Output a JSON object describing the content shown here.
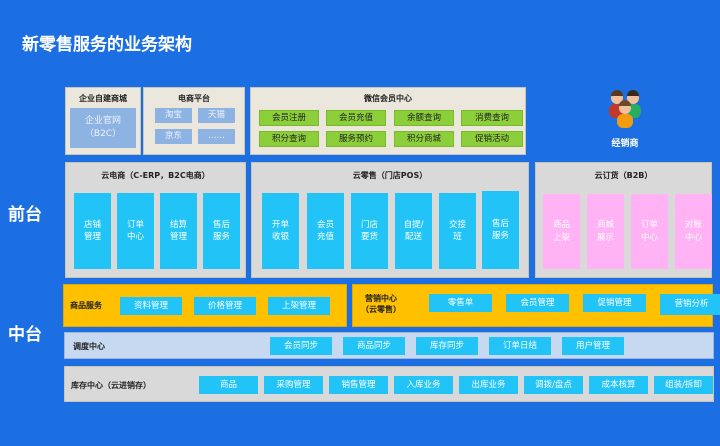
{
  "title": "新零售服务的业务架构",
  "side_labels": {
    "front": "前台",
    "middle": "中台"
  },
  "dealer": {
    "label": "经销商",
    "icon": "people-group-icon"
  },
  "self_mall": {
    "title": "企业自建商城",
    "item": "企业官网\n（B2C）"
  },
  "ecom_platform": {
    "title": "电商平台",
    "items": [
      "淘宝",
      "天猫",
      "京东",
      "……"
    ]
  },
  "wechat": {
    "title": "微信会员中心",
    "items": [
      "会员注册",
      "会员充值",
      "余额查询",
      "消费查询",
      "积分查询",
      "服务预约",
      "积分商城",
      "促销活动"
    ]
  },
  "cloud_ecom": {
    "title": "云电商（C-ERP，B2C电商）",
    "items": [
      "店铺\n管理",
      "订单\n中心",
      "结算\n管理",
      "售后\n服务"
    ]
  },
  "cloud_retail": {
    "title": "云零售（门店POS）",
    "items": [
      "开单\n收银",
      "会员\n充值",
      "门店\n要货",
      "自提/\n配送",
      "交接\n班",
      "售后\n服务"
    ]
  },
  "cloud_order": {
    "title": "云订货（B2B）",
    "items": [
      "商品\n上架",
      "商城\n展示",
      "订单\n中心",
      "对账\n中心"
    ]
  },
  "goods_service": {
    "title": "商品服务",
    "items": [
      "资料管理",
      "价格管理",
      "上架管理"
    ]
  },
  "marketing": {
    "title": "营销中心\n（云零售）",
    "items": [
      "零售单",
      "会员管理",
      "促销管理",
      "营销分析"
    ]
  },
  "dispatch": {
    "title": "调度中心",
    "items": [
      "会员同步",
      "商品同步",
      "库存同步",
      "订单日结",
      "用户管理"
    ]
  },
  "inventory": {
    "title": "库存中心（云进销存）",
    "items": [
      "商品",
      "采购管理",
      "销售管理",
      "入库业务",
      "出库业务",
      "调拨/盘点",
      "成本核算",
      "组装/拆卸"
    ]
  },
  "colors": {
    "background": "#1b6fe3",
    "green": "#8ccf3a",
    "cyan": "#22c3f7",
    "pink": "#ffb3f5",
    "yellow": "#ffc000"
  }
}
